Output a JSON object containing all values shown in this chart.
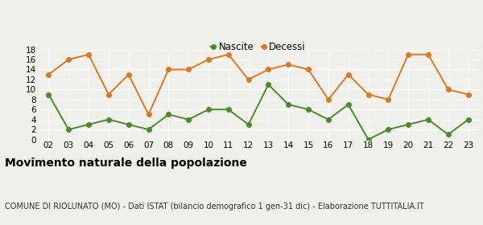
{
  "years": [
    "02",
    "03",
    "04",
    "05",
    "06",
    "07",
    "08",
    "09",
    "10",
    "11",
    "12",
    "13",
    "14",
    "15",
    "16",
    "17",
    "18",
    "19",
    "20",
    "21",
    "22",
    "23"
  ],
  "nascite": [
    9,
    2,
    3,
    4,
    3,
    2,
    5,
    4,
    6,
    6,
    3,
    11,
    7,
    6,
    4,
    7,
    0,
    2,
    3,
    4,
    1,
    4
  ],
  "decessi": [
    13,
    16,
    17,
    9,
    13,
    5,
    14,
    14,
    16,
    17,
    12,
    14,
    15,
    14,
    8,
    13,
    9,
    8,
    17,
    17,
    10,
    9
  ],
  "nascite_color": "#4a8c2a",
  "decessi_color": "#e07820",
  "title": "Movimento naturale della popolazione",
  "subtitle": "COMUNE DI RIOLUNATO (MO) - Dati ISTAT (bilancio demografico 1 gen-31 dic) - Elaborazione TUTTITALIA.IT",
  "legend_labels": [
    "Nascite",
    "Decessi"
  ],
  "ylim": [
    0,
    18
  ],
  "yticks": [
    0,
    2,
    4,
    6,
    8,
    10,
    12,
    14,
    16,
    18
  ],
  "bg_color": "#f0f0eb",
  "title_fontsize": 10,
  "subtitle_fontsize": 7,
  "legend_fontsize": 8.5,
  "tick_fontsize": 7.5,
  "marker_size": 4,
  "line_width": 1.4
}
